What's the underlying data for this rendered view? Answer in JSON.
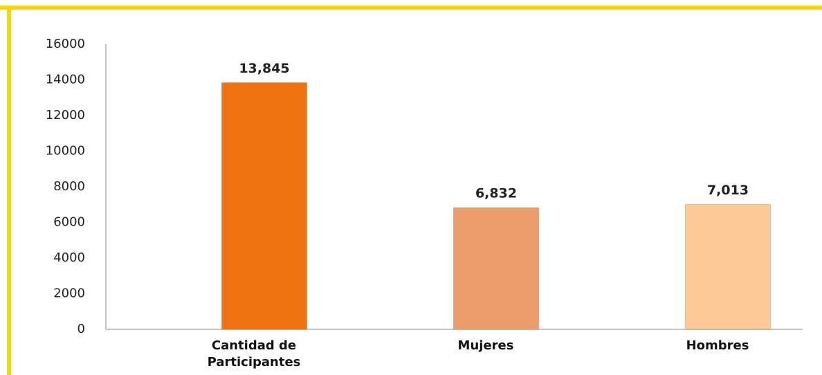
{
  "chart_data": {
    "type": "bar",
    "categories": [
      "Cantidad de Participantes",
      "Mujeres",
      "Hombres"
    ],
    "values": [
      13845,
      6832,
      7013
    ],
    "value_labels": [
      "13,845",
      "6,832",
      "7,013"
    ],
    "colors": [
      "#f07512",
      "#ec9d6c",
      "#fdc996"
    ],
    "ylim": [
      0,
      16000
    ],
    "yticks": [
      0,
      2000,
      4000,
      6000,
      8000,
      10000,
      12000,
      14000,
      16000
    ],
    "grid": false
  }
}
